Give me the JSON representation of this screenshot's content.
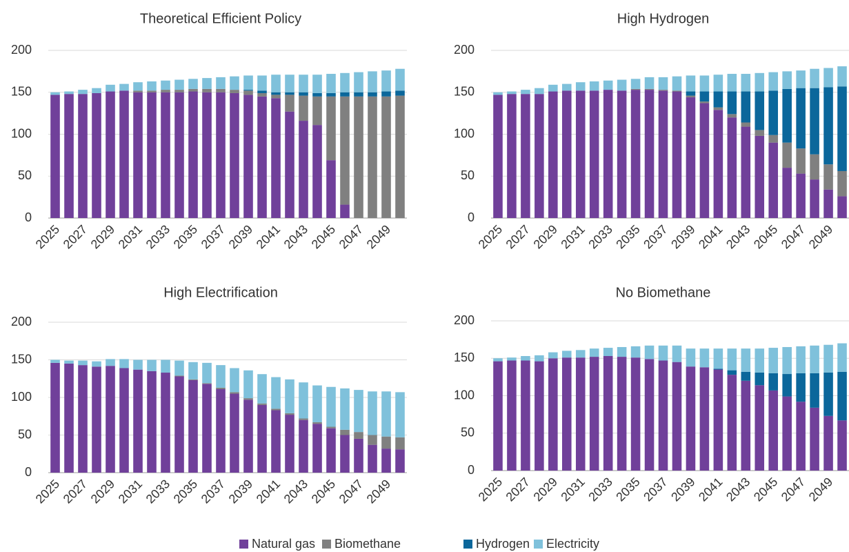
{
  "chart_data": [
    {
      "type": "stacked_bar",
      "title": "Theoretical Efficient Policy",
      "categories": [
        "2025",
        null,
        "2027",
        null,
        "2029",
        null,
        "2031",
        null,
        "2033",
        null,
        "2035",
        null,
        "2037",
        null,
        "2039",
        null,
        "2041",
        null,
        "2043",
        null,
        "2045",
        null,
        "2047",
        null,
        "2049",
        null
      ],
      "ylim": [
        0,
        200
      ],
      "yticks": [
        0,
        50,
        100,
        150,
        200
      ],
      "grid": true,
      "series": [
        {
          "name": "Natural gas",
          "color": "#70409a",
          "values": [
            147,
            148,
            148,
            149,
            151,
            152,
            150,
            150,
            150,
            150,
            151,
            150,
            150,
            149,
            147,
            145,
            143,
            127,
            116,
            111,
            69,
            16,
            0,
            0,
            0,
            0
          ]
        },
        {
          "name": "Biomethane",
          "color": "#808080",
          "values": [
            0,
            0,
            0,
            0,
            0,
            0,
            2,
            2,
            3,
            3,
            3,
            4,
            4,
            4,
            5,
            4,
            4,
            20,
            30,
            34,
            76,
            129,
            145,
            145,
            145,
            146
          ]
        },
        {
          "name": "Hydrogen",
          "color": "#0b679b",
          "values": [
            0,
            0,
            0,
            0,
            0,
            0,
            0,
            0,
            0,
            0,
            0,
            0,
            0,
            0,
            1,
            3,
            3,
            3,
            4,
            4,
            4,
            5,
            5,
            5,
            6,
            6
          ]
        },
        {
          "name": "Electricity",
          "color": "#7fc1db",
          "values": [
            3,
            3,
            5,
            6,
            8,
            8,
            10,
            11,
            11,
            12,
            12,
            13,
            14,
            16,
            17,
            18,
            21,
            21,
            21,
            22,
            23,
            23,
            24,
            25,
            25,
            26
          ]
        }
      ]
    },
    {
      "type": "stacked_bar",
      "title": "High Hydrogen",
      "categories": [
        "2025",
        null,
        "2027",
        null,
        "2029",
        null,
        "2031",
        null,
        "2033",
        null,
        "2035",
        null,
        "2037",
        null,
        "2039",
        null,
        "2041",
        null,
        "2043",
        null,
        "2045",
        null,
        "2047",
        null,
        "2049",
        null
      ],
      "ylim": [
        0,
        200
      ],
      "yticks": [
        0,
        50,
        100,
        150,
        200
      ],
      "grid": true,
      "series": [
        {
          "name": "Natural gas",
          "color": "#70409a",
          "values": [
            147,
            148,
            148,
            148,
            151,
            152,
            152,
            152,
            153,
            152,
            153,
            153,
            152,
            151,
            144,
            137,
            129,
            120,
            109,
            98,
            90,
            60,
            53,
            46,
            34,
            26
          ]
        },
        {
          "name": "Biomethane",
          "color": "#808080",
          "values": [
            0,
            0,
            0,
            0,
            0,
            0,
            0,
            0,
            0,
            0,
            1,
            1,
            1,
            1,
            2,
            2,
            3,
            4,
            5,
            7,
            9,
            30,
            30,
            30,
            30,
            30
          ]
        },
        {
          "name": "Hydrogen",
          "color": "#0b679b",
          "values": [
            0,
            0,
            0,
            0,
            0,
            0,
            0,
            0,
            0,
            0,
            0,
            0,
            0,
            0,
            5,
            12,
            19,
            27,
            37,
            46,
            53,
            64,
            72,
            79,
            92,
            101
          ]
        },
        {
          "name": "Electricity",
          "color": "#7fc1db",
          "values": [
            3,
            3,
            5,
            7,
            8,
            8,
            10,
            11,
            11,
            13,
            12,
            14,
            15,
            17,
            19,
            19,
            20,
            21,
            21,
            22,
            22,
            21,
            21,
            23,
            23,
            24
          ]
        }
      ]
    },
    {
      "type": "stacked_bar",
      "title": "High Electrification",
      "categories": [
        "2025",
        null,
        "2027",
        null,
        "2029",
        null,
        "2031",
        null,
        "2033",
        null,
        "2035",
        null,
        "2037",
        null,
        "2039",
        null,
        "2041",
        null,
        "2043",
        null,
        "2045",
        null,
        "2047",
        null,
        "2049",
        null
      ],
      "ylim": [
        0,
        200
      ],
      "yticks": [
        0,
        50,
        100,
        150,
        200
      ],
      "grid": true,
      "series": [
        {
          "name": "Natural gas",
          "color": "#70409a",
          "values": [
            146,
            145,
            143,
            141,
            142,
            139,
            137,
            135,
            133,
            128,
            123,
            118,
            111,
            105,
            97,
            90,
            83,
            77,
            70,
            65,
            59,
            50,
            45,
            37,
            32,
            31
          ]
        },
        {
          "name": "Biomethane",
          "color": "#808080",
          "values": [
            0,
            0,
            0,
            0,
            0,
            0,
            0,
            0,
            0,
            1,
            1,
            1,
            2,
            2,
            2,
            2,
            2,
            2,
            2,
            2,
            2,
            7,
            9,
            13,
            16,
            16
          ]
        },
        {
          "name": "Hydrogen",
          "color": "#0b679b",
          "values": [
            0,
            0,
            0,
            0,
            0,
            0,
            0,
            0,
            0,
            0,
            0,
            0,
            0,
            0,
            0,
            0,
            0,
            0,
            0,
            0,
            0,
            0,
            0,
            0,
            0,
            0
          ]
        },
        {
          "name": "Electricity",
          "color": "#7fc1db",
          "values": [
            4,
            4,
            6,
            7,
            9,
            12,
            13,
            15,
            17,
            20,
            23,
            27,
            30,
            32,
            37,
            39,
            42,
            45,
            48,
            49,
            53,
            55,
            56,
            58,
            60,
            60
          ]
        }
      ]
    },
    {
      "type": "stacked_bar",
      "title": "No Biomethane",
      "categories": [
        "2025",
        null,
        "2027",
        null,
        "2029",
        null,
        "2031",
        null,
        "2033",
        null,
        "2035",
        null,
        "2037",
        null,
        "2039",
        null,
        "2041",
        null,
        "2043",
        null,
        "2045",
        null,
        "2047",
        null,
        "2049",
        null
      ],
      "ylim": [
        0,
        200
      ],
      "yticks": [
        0,
        50,
        100,
        150,
        200
      ],
      "grid": true,
      "series": [
        {
          "name": "Natural gas",
          "color": "#70409a",
          "values": [
            146,
            147,
            147,
            146,
            150,
            151,
            151,
            152,
            153,
            152,
            151,
            149,
            147,
            145,
            139,
            138,
            135,
            128,
            120,
            114,
            107,
            99,
            92,
            84,
            73,
            67
          ]
        },
        {
          "name": "Biomethane",
          "color": "#808080",
          "values": [
            0,
            0,
            0,
            0,
            0,
            0,
            0,
            0,
            0,
            0,
            0,
            0,
            0,
            0,
            0,
            0,
            0,
            0,
            0,
            0,
            0,
            0,
            0,
            0,
            0,
            0
          ]
        },
        {
          "name": "Hydrogen",
          "color": "#0b679b",
          "values": [
            0,
            0,
            0,
            0,
            0,
            0,
            0,
            0,
            0,
            0,
            0,
            0,
            0,
            0,
            0,
            0,
            1,
            6,
            12,
            17,
            23,
            30,
            38,
            46,
            58,
            65
          ]
        },
        {
          "name": "Electricity",
          "color": "#7fc1db",
          "values": [
            4,
            4,
            6,
            8,
            8,
            9,
            10,
            11,
            11,
            13,
            15,
            18,
            20,
            22,
            24,
            25,
            27,
            29,
            31,
            32,
            34,
            36,
            36,
            37,
            37,
            38
          ]
        }
      ]
    }
  ]
}
